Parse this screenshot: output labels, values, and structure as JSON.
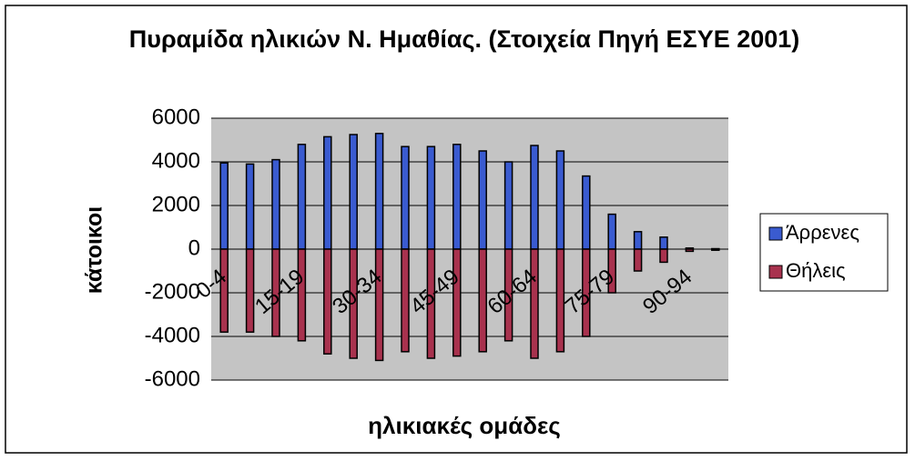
{
  "chart_data": {
    "type": "bar",
    "title": "Πυραμίδα ηλικιών Ν. Ημαθίας. (Στοιχεία Πηγή ΕΣΥΕ 2001)",
    "x_label": "ηλικιακές ομάδες",
    "y_label": "κάτοικοι",
    "categories": [
      "0-4",
      null,
      null,
      "15-19",
      null,
      null,
      "30-34",
      null,
      null,
      "45-49",
      null,
      null,
      "60-64",
      null,
      null,
      "75-79",
      null,
      null,
      "90-94",
      null
    ],
    "series": [
      {
        "name": "Άρρενες",
        "color": "#3a5bd0",
        "values": [
          3950,
          3900,
          4100,
          4800,
          5150,
          5250,
          5300,
          4700,
          4700,
          4800,
          4500,
          4000,
          4750,
          4500,
          3350,
          1600,
          800,
          550,
          50,
          20
        ]
      },
      {
        "name": "Θήλεις",
        "color": "#a8324e",
        "values": [
          -3800,
          -3800,
          -4000,
          -4200,
          -4800,
          -5000,
          -5100,
          -4700,
          -5000,
          -4900,
          -4700,
          -4200,
          -5000,
          -4700,
          -4000,
          -2000,
          -1000,
          -600,
          -100,
          -50
        ]
      }
    ],
    "ylim": [
      -6000,
      6000
    ],
    "yticks": [
      -6000,
      -4000,
      -2000,
      0,
      2000,
      4000,
      6000
    ],
    "grid": true,
    "legend": "right"
  }
}
